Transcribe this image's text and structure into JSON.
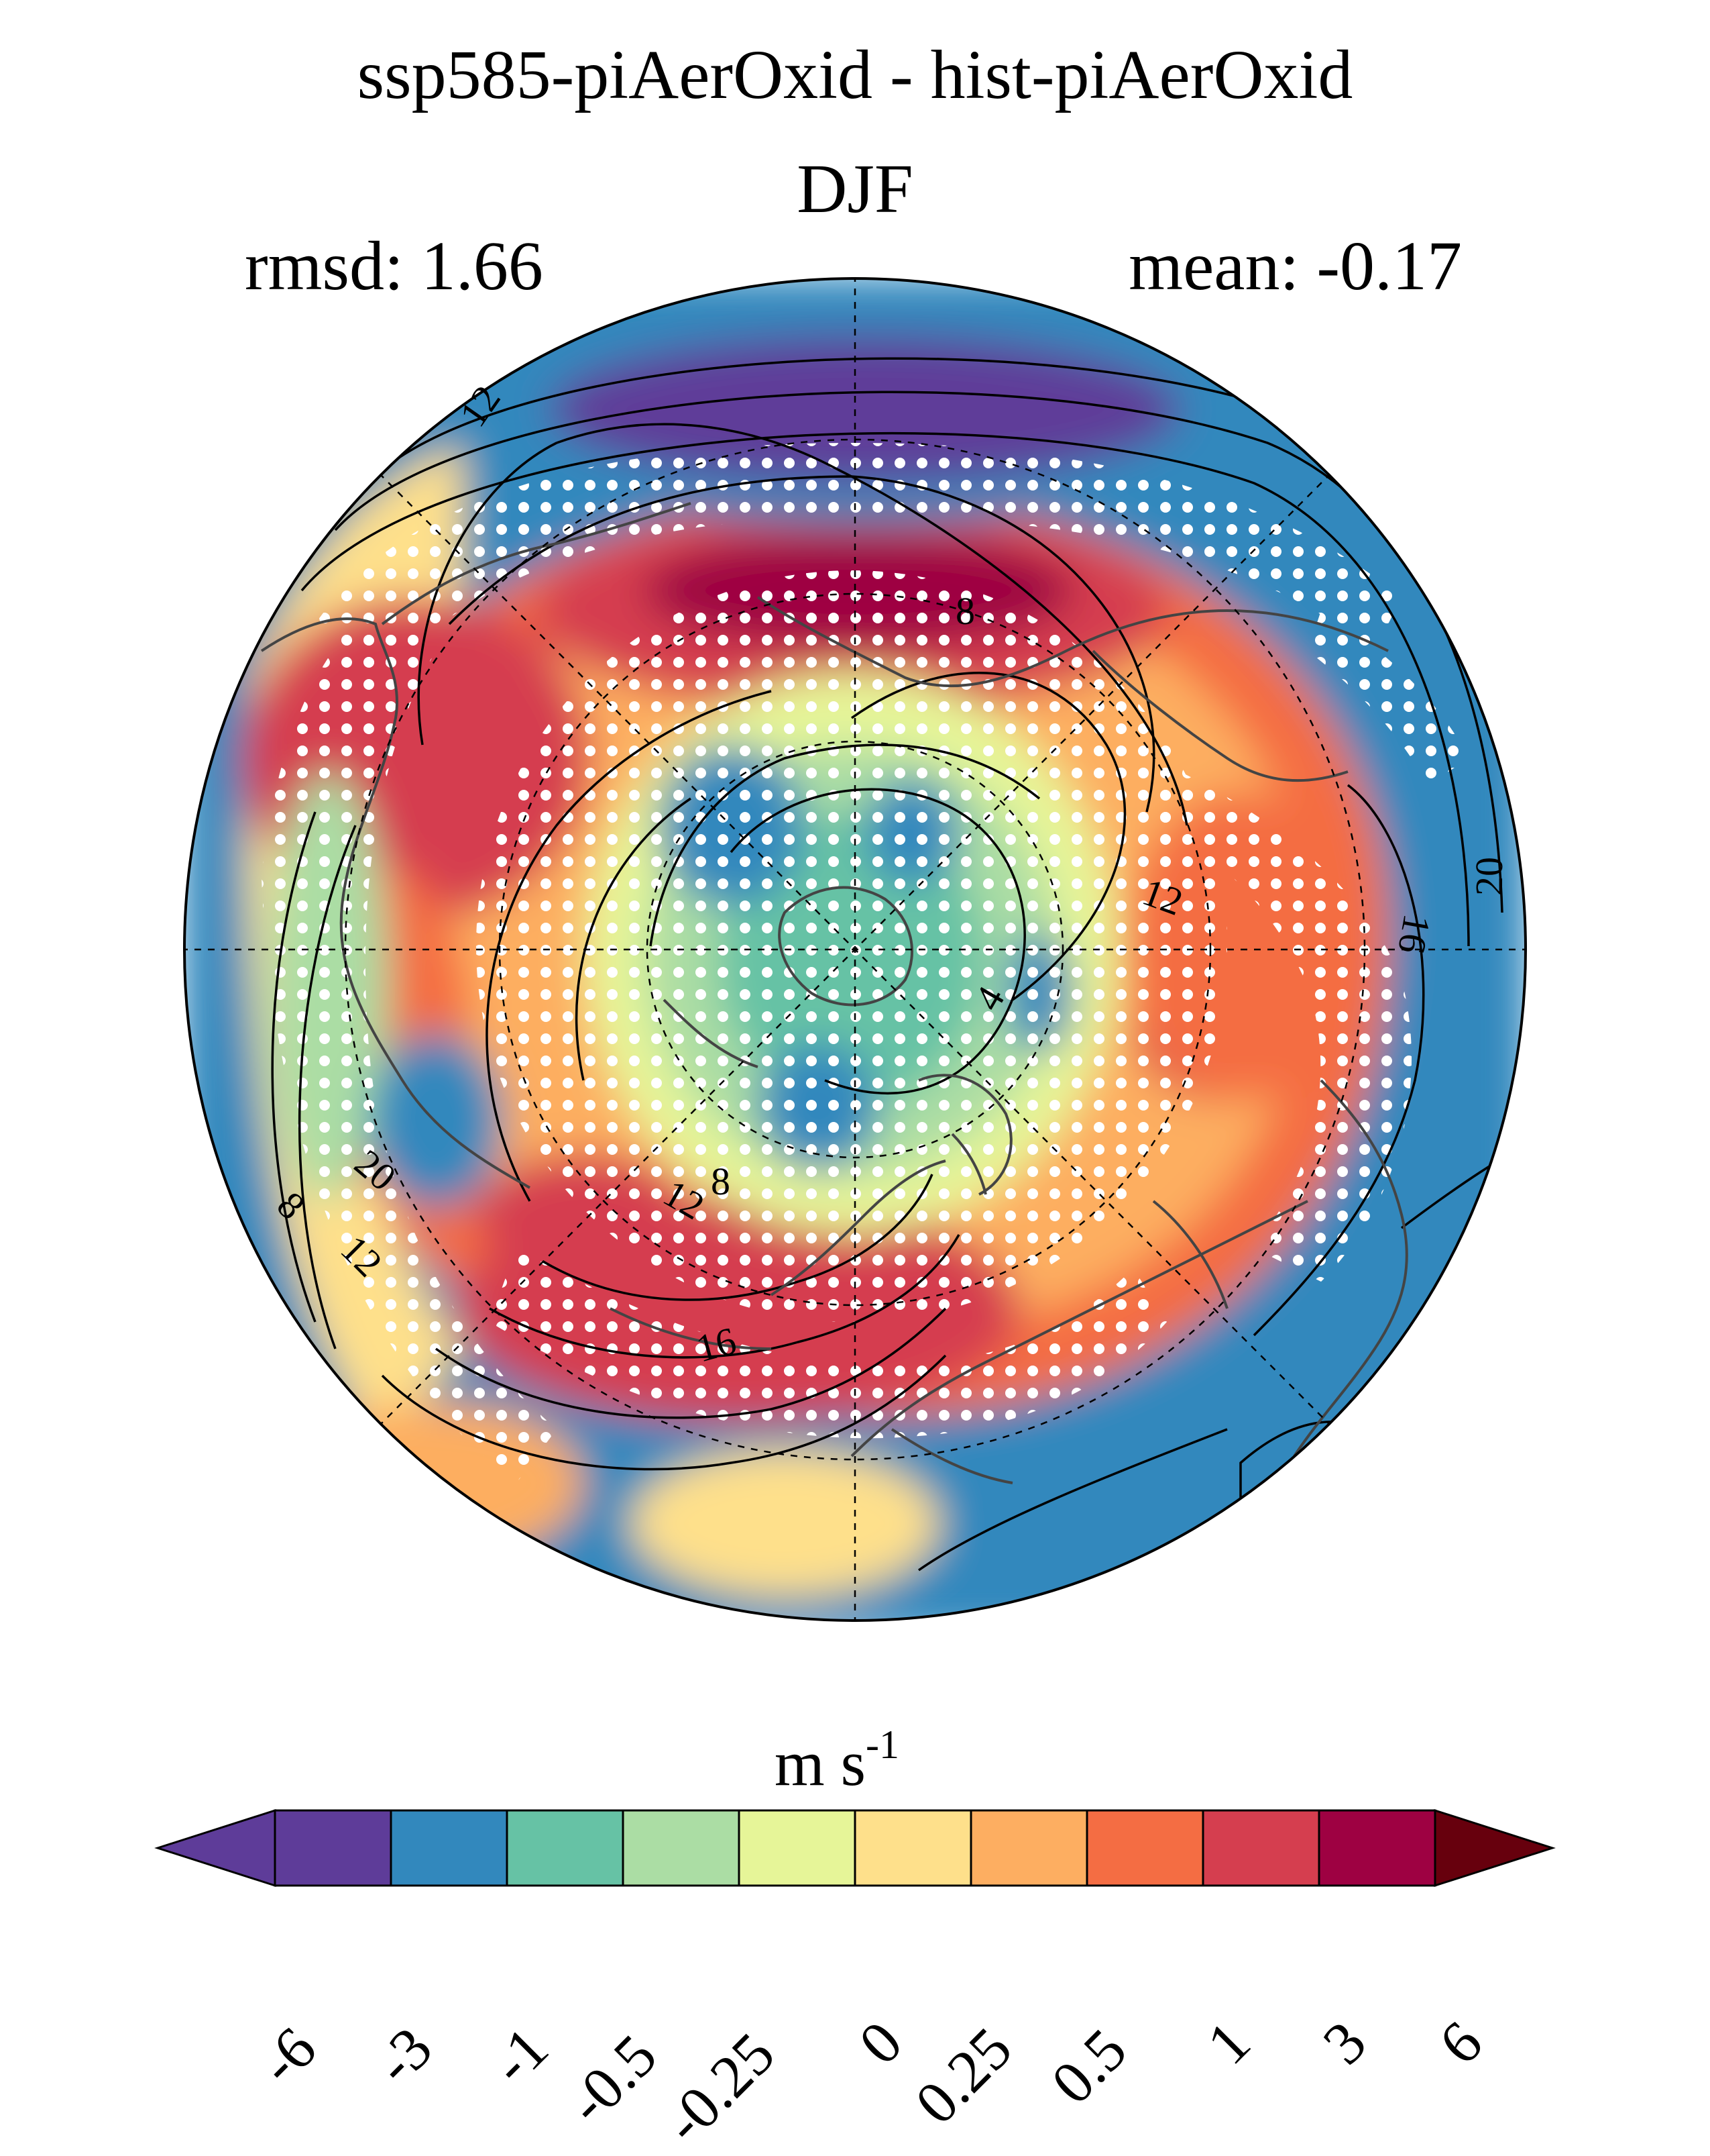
{
  "figure": {
    "title": "ssp585-piAerOxid - hist-piAerOxid",
    "season": "DJF",
    "rmsd_label": "rmsd: 1.66",
    "mean_label": "mean: -0.17",
    "projection": "north polar stereographic",
    "contour_labels": [
      "12",
      "8",
      "12",
      "20",
      "4",
      "12",
      "8",
      "16",
      "20",
      "8",
      "12",
      "16"
    ],
    "stippling": "significance dots (white)"
  },
  "colorbar": {
    "units_main": "m s",
    "units_exp": "-1",
    "tick_labels": [
      "-6",
      "-3",
      "-1",
      "-0.5",
      "-0.25",
      "0",
      "0.25",
      "0.5",
      "1",
      "3",
      "6"
    ],
    "extend": "both",
    "colors": [
      "#5e3c99",
      "#3288bd",
      "#66c2a5",
      "#abdda4",
      "#e6f598",
      "#fee08b",
      "#fdae61",
      "#f46d43",
      "#d53e4f",
      "#9e0142"
    ],
    "under_color": "#5e3c99",
    "over_color": "#67000d"
  }
}
